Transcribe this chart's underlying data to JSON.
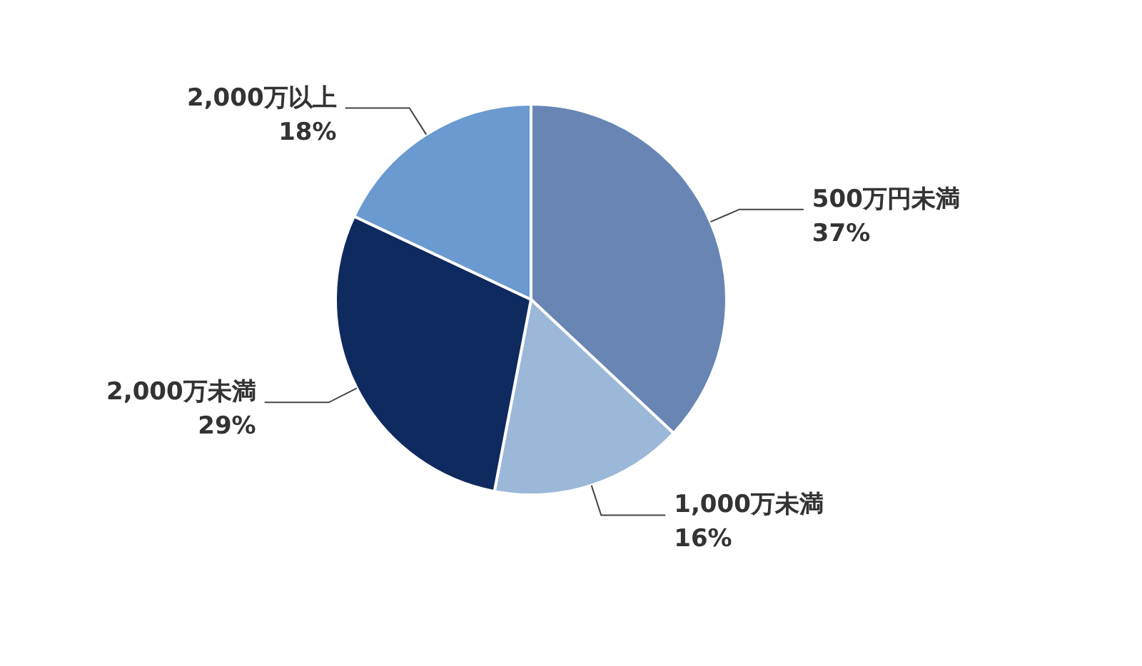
{
  "chart_data": {
    "type": "pie",
    "categories": [
      "500万円未満",
      "1,000万未満",
      "2,000万未満",
      "2,000万以上"
    ],
    "values": [
      37,
      16,
      29,
      18
    ],
    "value_labels": [
      "37%",
      "16%",
      "29%",
      "18%"
    ],
    "colors": [
      "#6885b4",
      "#9cb8d8",
      "#0f2a5f",
      "#6a9acf"
    ],
    "legend": false
  }
}
